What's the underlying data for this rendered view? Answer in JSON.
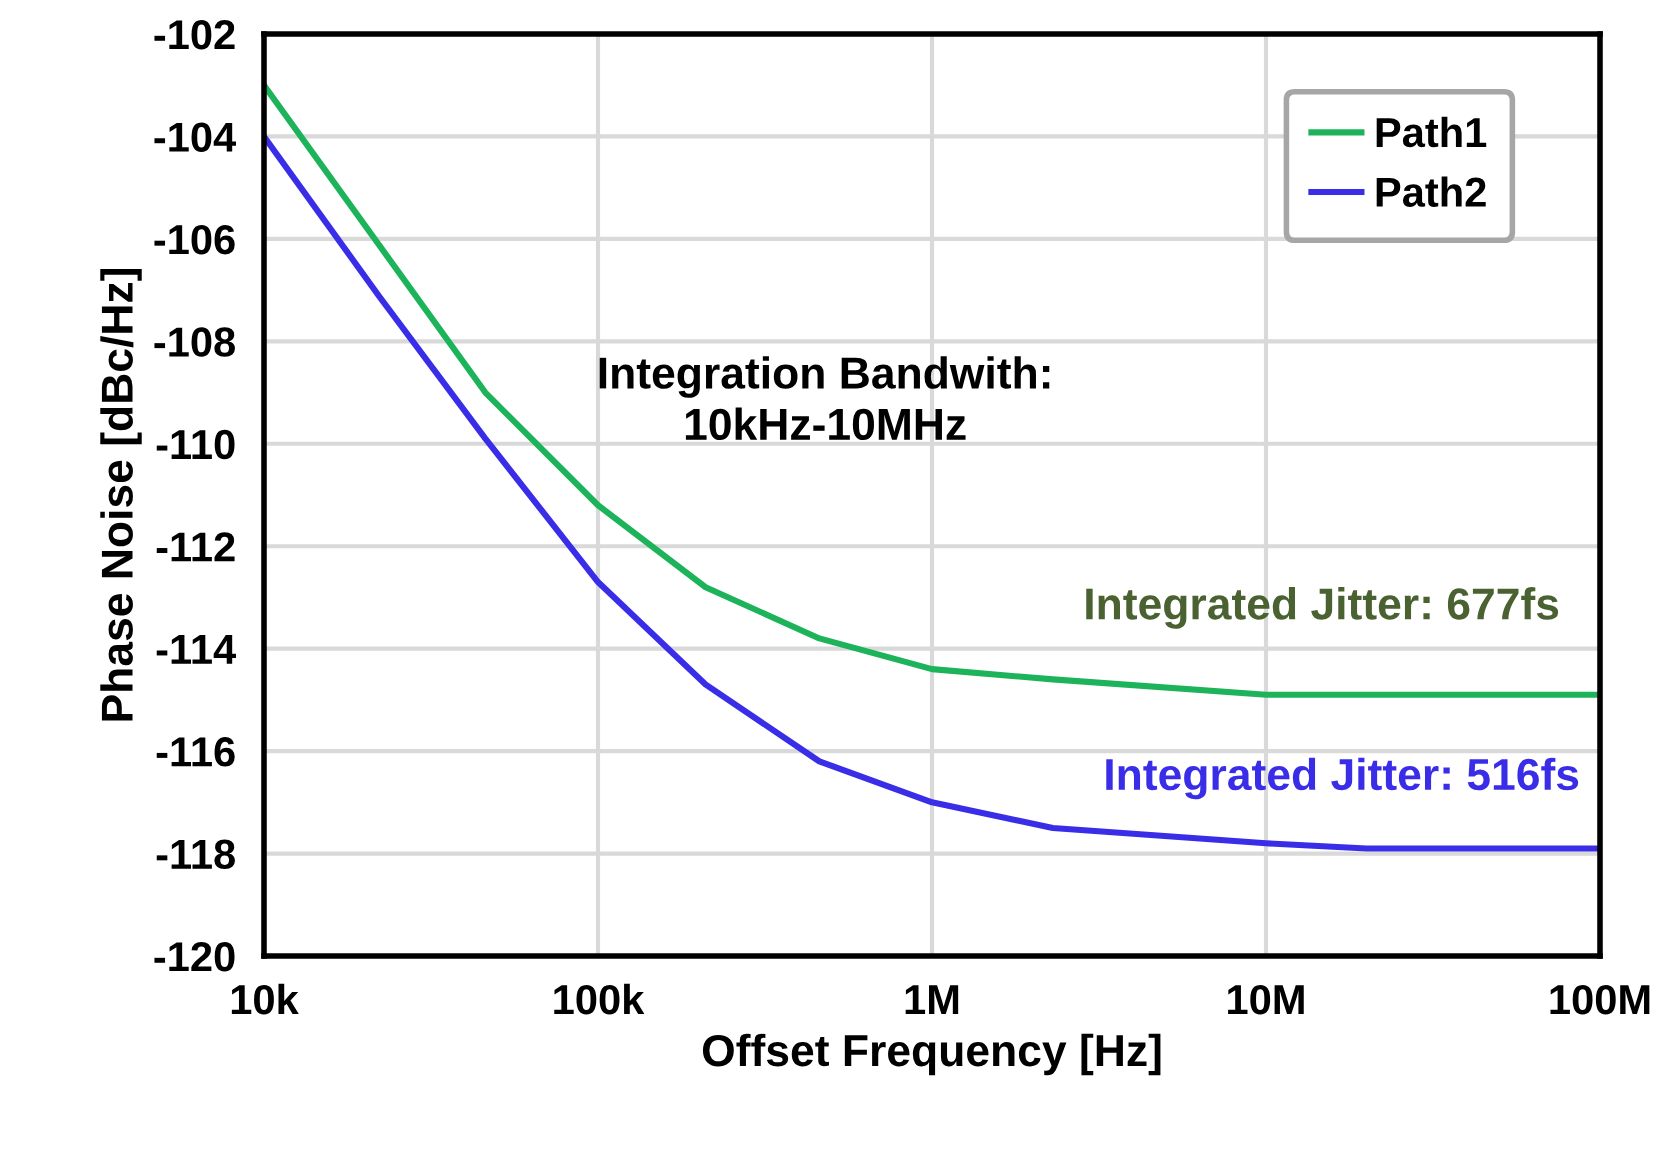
{
  "chart_data": {
    "type": "line",
    "xlabel": "Offset Frequency [Hz]",
    "ylabel": "Phase Noise [dBc/Hz]",
    "log": "x",
    "xlim": [
      10000,
      100000000
    ],
    "xticks": [
      {
        "value": 10000,
        "label": "10k"
      },
      {
        "value": 100000,
        "label": "100k"
      },
      {
        "value": 1000000,
        "label": "1M"
      },
      {
        "value": 10000000,
        "label": "10M"
      },
      {
        "value": 100000000,
        "label": "100M"
      }
    ],
    "ylim": [
      -120,
      -102
    ],
    "yticks": [
      -120,
      -118,
      -116,
      -114,
      -112,
      -110,
      -108,
      -106,
      -104,
      -102
    ],
    "grid": true,
    "legend": "top right",
    "marker": "none",
    "line_style": "solid",
    "series": [
      {
        "name": "Path1",
        "color": "#1db35a",
        "x": [
          10000,
          22000,
          46000,
          100000,
          210000,
          460000,
          1000000,
          2300000,
          10000000,
          100000000
        ],
        "values": [
          -103.0,
          -106.1,
          -109.0,
          -111.2,
          -112.8,
          -113.8,
          -114.4,
          -114.6,
          -114.9,
          -114.9
        ]
      },
      {
        "name": "Path2",
        "color": "#3a2de8",
        "x": [
          10000,
          22000,
          46000,
          100000,
          210000,
          460000,
          1000000,
          2300000,
          10000000,
          20000000,
          100000000
        ],
        "values": [
          -104.0,
          -107.1,
          -109.9,
          -112.7,
          -114.7,
          -116.2,
          -117.0,
          -117.5,
          -117.8,
          -117.9,
          -117.9
        ]
      }
    ],
    "annotations": [
      "Integration Bandwith:\n10kHz-10MHz",
      "Integrated Jitter: 677fs",
      "Integrated Jitter: 516fs"
    ]
  }
}
